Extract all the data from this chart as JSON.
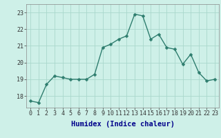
{
  "x": [
    0,
    1,
    2,
    3,
    4,
    5,
    6,
    7,
    8,
    9,
    10,
    11,
    12,
    13,
    14,
    15,
    16,
    17,
    18,
    19,
    20,
    21,
    22,
    23
  ],
  "y": [
    17.7,
    17.6,
    18.7,
    19.2,
    19.1,
    19.0,
    19.0,
    19.0,
    19.3,
    20.9,
    21.1,
    21.4,
    21.6,
    22.9,
    22.8,
    21.4,
    21.7,
    20.9,
    20.8,
    19.9,
    20.5,
    19.4,
    18.9,
    19.0
  ],
  "line_color": "#2e7d6e",
  "marker": "D",
  "markersize": 2.5,
  "linewidth": 1.0,
  "bg_color": "#cef0e8",
  "grid_color": "#aad8cc",
  "xlabel": "Humidex (Indice chaleur)",
  "xlabel_fontsize": 7.5,
  "ylabel_ticks": [
    18,
    19,
    20,
    21,
    22,
    23
  ],
  "xlim": [
    -0.5,
    23.5
  ],
  "ylim": [
    17.3,
    23.5
  ],
  "xtick_labels": [
    "0",
    "1",
    "2",
    "3",
    "4",
    "5",
    "6",
    "7",
    "8",
    "9",
    "10",
    "11",
    "12",
    "13",
    "14",
    "15",
    "16",
    "17",
    "18",
    "19",
    "20",
    "21",
    "22",
    "23"
  ],
  "tick_fontsize": 6.0,
  "xlabel_color": "#00008b"
}
